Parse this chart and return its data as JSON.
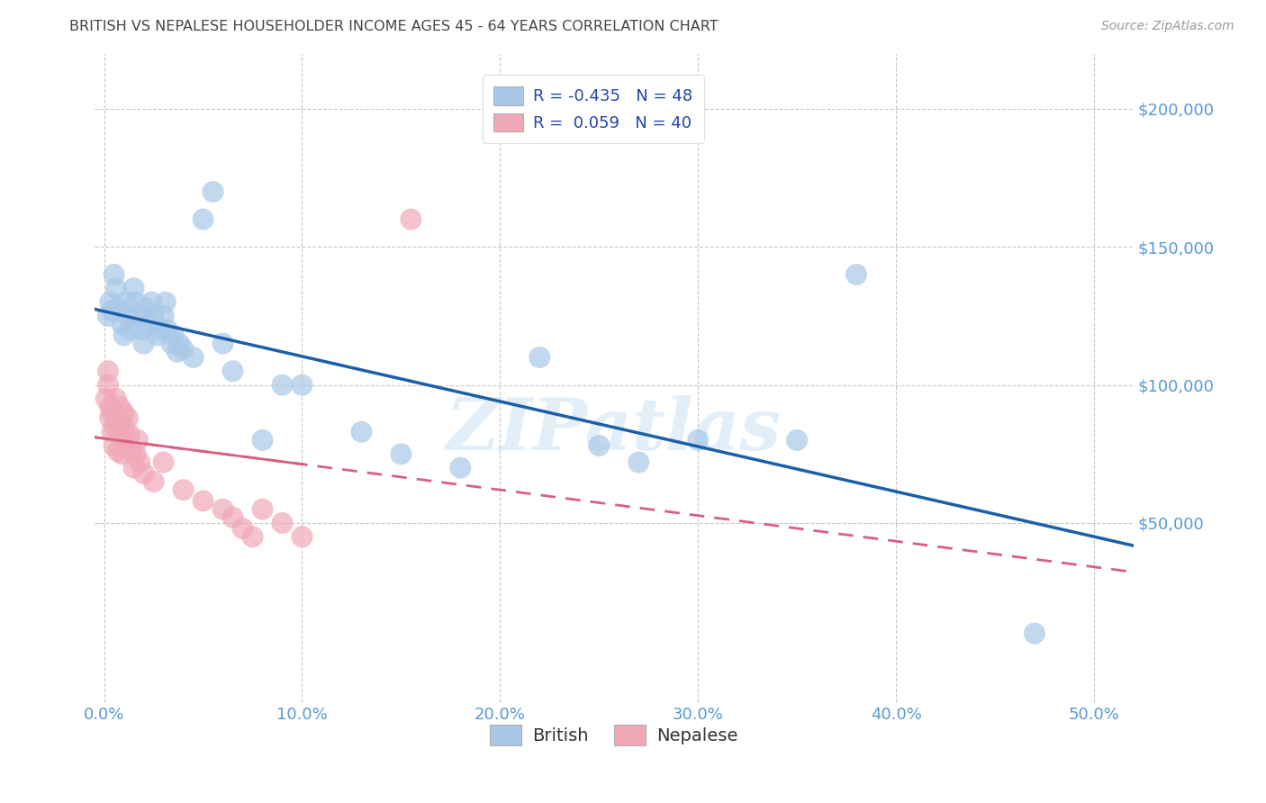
{
  "title": "BRITISH VS NEPALESE HOUSEHOLDER INCOME AGES 45 - 64 YEARS CORRELATION CHART",
  "source": "Source: ZipAtlas.com",
  "xlabel_ticks": [
    "0.0%",
    "10.0%",
    "20.0%",
    "30.0%",
    "40.0%",
    "50.0%"
  ],
  "xlabel_vals": [
    0.0,
    0.1,
    0.2,
    0.3,
    0.4,
    0.5
  ],
  "ylabel_ticks": [
    "$50,000",
    "$100,000",
    "$150,000",
    "$200,000"
  ],
  "ylabel_vals": [
    50000,
    100000,
    150000,
    200000
  ],
  "xlim": [
    -0.005,
    0.52
  ],
  "ylim": [
    -15000,
    220000
  ],
  "watermark": "ZIPatlas",
  "british_color": "#a8c8e8",
  "nepalese_color": "#f0a8b8",
  "british_line_color": "#1a5fa8",
  "nepalese_line_color": "#d86080",
  "axis_label_color": "#5599dd",
  "title_color": "#444444",
  "legend_text_color": "#2244aa",
  "background_color": "#ffffff",
  "grid_color": "#c8c8c8",
  "british_x": [
    0.002,
    0.003,
    0.004,
    0.005,
    0.006,
    0.007,
    0.009,
    0.01,
    0.011,
    0.012,
    0.013,
    0.015,
    0.016,
    0.017,
    0.019,
    0.02,
    0.021,
    0.022,
    0.024,
    0.025,
    0.027,
    0.028,
    0.03,
    0.031,
    0.032,
    0.034,
    0.035,
    0.037,
    0.038,
    0.04,
    0.045,
    0.05,
    0.055,
    0.06,
    0.065,
    0.08,
    0.09,
    0.1,
    0.13,
    0.15,
    0.18,
    0.22,
    0.25,
    0.27,
    0.3,
    0.35,
    0.38,
    0.47
  ],
  "british_y": [
    125000,
    130000,
    127000,
    140000,
    135000,
    128000,
    122000,
    118000,
    130000,
    125000,
    120000,
    135000,
    130000,
    125000,
    120000,
    115000,
    128000,
    122000,
    130000,
    125000,
    118000,
    120000,
    125000,
    130000,
    120000,
    115000,
    118000,
    112000,
    115000,
    113000,
    110000,
    160000,
    170000,
    115000,
    105000,
    80000,
    100000,
    100000,
    83000,
    75000,
    70000,
    110000,
    78000,
    72000,
    80000,
    80000,
    140000,
    10000
  ],
  "nepalese_x": [
    0.001,
    0.002,
    0.002,
    0.003,
    0.003,
    0.004,
    0.004,
    0.005,
    0.005,
    0.006,
    0.006,
    0.007,
    0.007,
    0.008,
    0.008,
    0.009,
    0.009,
    0.01,
    0.01,
    0.011,
    0.012,
    0.013,
    0.014,
    0.015,
    0.016,
    0.017,
    0.018,
    0.02,
    0.025,
    0.03,
    0.04,
    0.05,
    0.06,
    0.065,
    0.07,
    0.075,
    0.08,
    0.09,
    0.1,
    0.155
  ],
  "nepalese_y": [
    95000,
    100000,
    105000,
    92000,
    88000,
    90000,
    83000,
    85000,
    78000,
    95000,
    88000,
    82000,
    76000,
    92000,
    86000,
    80000,
    75000,
    90000,
    85000,
    80000,
    88000,
    82000,
    76000,
    70000,
    75000,
    80000,
    72000,
    68000,
    65000,
    72000,
    62000,
    58000,
    55000,
    52000,
    48000,
    45000,
    55000,
    50000,
    45000,
    160000
  ]
}
